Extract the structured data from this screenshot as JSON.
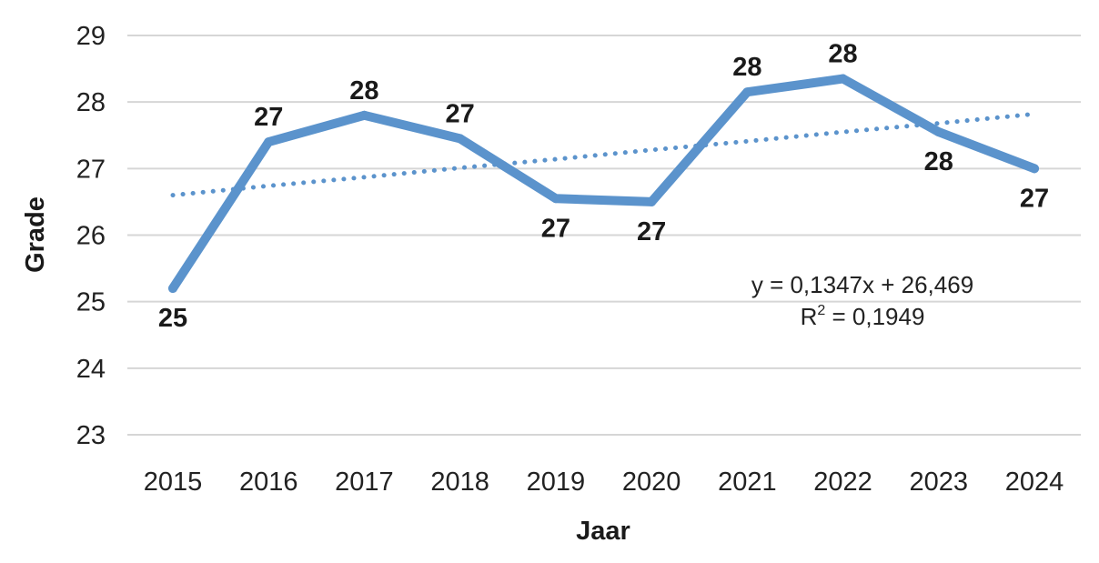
{
  "chart_data": {
    "type": "line",
    "title": "",
    "xlabel": "Jaar",
    "ylabel": "Grade",
    "x": [
      "2015",
      "2016",
      "2017",
      "2018",
      "2019",
      "2020",
      "2021",
      "2022",
      "2023",
      "2024"
    ],
    "ylim": [
      23,
      29
    ],
    "yticks": [
      "23",
      "24",
      "25",
      "26",
      "27",
      "28",
      "29"
    ],
    "grid": true,
    "legend": "none",
    "series": [
      {
        "values": [
          25.2,
          27.4,
          27.8,
          27.45,
          26.55,
          26.5,
          28.15,
          28.35,
          27.55,
          27.0
        ],
        "data_labels": [
          "25",
          "27",
          "28",
          "27",
          "27",
          "27",
          "28",
          "28",
          "28",
          "27"
        ],
        "color": "#5b93cc",
        "style": "solid"
      }
    ],
    "trendline": {
      "type": "linear",
      "values": [
        26.6,
        26.74,
        26.87,
        27.01,
        27.14,
        27.28,
        27.41,
        27.55,
        27.68,
        27.82
      ],
      "color": "#5b93cc",
      "style": "dotted",
      "equation": "y = 0,1347x + 26,469",
      "r2_prefix": "R",
      "r2_exp": "2",
      "r2_value": " = 0,1949"
    }
  }
}
